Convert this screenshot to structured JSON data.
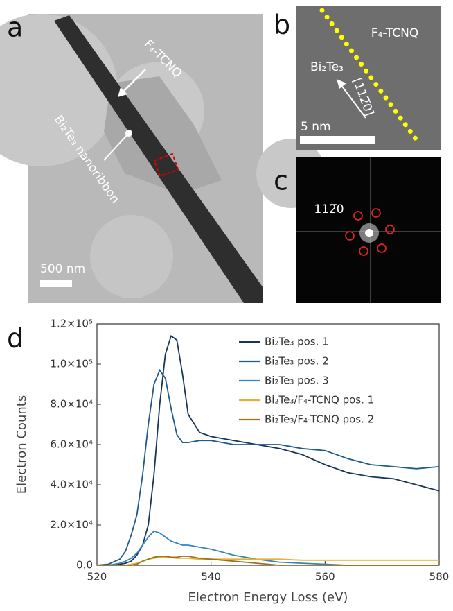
{
  "panels": {
    "a": {
      "label": "a",
      "annotations": [
        "F₄-TCNQ",
        "Bi₂Te₃ nanoribbon"
      ],
      "scale_bar": "500 nm"
    },
    "b": {
      "label": "b",
      "annotations": [
        "F₄-TCNQ",
        "Bi₂Te₃",
        "[112̅0]"
      ],
      "scale_bar": "5 nm"
    },
    "c": {
      "label": "c",
      "annotations": [
        "112̅0"
      ]
    },
    "d": {
      "label": "d"
    }
  },
  "chart_data": {
    "type": "line",
    "xlabel": "Electron Energy Loss (eV)",
    "ylabel": "Electron Counts",
    "x": [
      520,
      522,
      524,
      525,
      526,
      527,
      528,
      529,
      530,
      531,
      532,
      533,
      534,
      535,
      536,
      538,
      540,
      544,
      548,
      552,
      556,
      560,
      564,
      568,
      572,
      576,
      580
    ],
    "xlim": [
      520,
      580
    ],
    "xticks": [
      520,
      540,
      560,
      580
    ],
    "ylim": [
      0,
      120000
    ],
    "yticks": [
      {
        "value": 0,
        "label": "0.0"
      },
      {
        "value": 20000,
        "label": "2.0×10⁴"
      },
      {
        "value": 40000,
        "label": "4.0×10⁴"
      },
      {
        "value": 60000,
        "label": "6.0×10⁴"
      },
      {
        "value": 80000,
        "label": "8.0×10⁴"
      },
      {
        "value": 100000,
        "label": "1.0×10⁵"
      },
      {
        "value": 120000,
        "label": "1.2×10⁵"
      }
    ],
    "legend": "upper right",
    "series": [
      {
        "name": "Bi₂Te₃ pos. 1",
        "color": "#17365a",
        "values": [
          0,
          0,
          500,
          1000,
          2000,
          5000,
          10000,
          20000,
          45000,
          80000,
          105000,
          114000,
          112000,
          95000,
          75000,
          66000,
          64000,
          62000,
          60000,
          58000,
          55000,
          50000,
          46000,
          44000,
          43000,
          40000,
          37000
        ]
      },
      {
        "name": "Bi₂Te₃ pos. 2",
        "color": "#1f5a8a",
        "values": [
          0,
          500,
          3000,
          7000,
          15000,
          25000,
          45000,
          70000,
          90000,
          97000,
          93000,
          78000,
          65000,
          61000,
          61000,
          62000,
          62000,
          60000,
          60000,
          60000,
          58000,
          57000,
          53000,
          50000,
          49000,
          48000,
          49000
        ]
      },
      {
        "name": "Bi₂Te₃ pos. 3",
        "color": "#2f86c0",
        "values": [
          0,
          0,
          1000,
          2000,
          3500,
          6000,
          10000,
          14000,
          17000,
          16000,
          14000,
          12000,
          11000,
          10000,
          10000,
          9000,
          8000,
          5000,
          3000,
          1500,
          1000,
          500,
          0,
          0,
          0,
          0,
          0
        ]
      },
      {
        "name": "Bi₂Te₃/F₄-TCNQ pos. 1",
        "color": "#e8b030",
        "values": [
          0,
          0,
          0,
          0,
          500,
          1000,
          2000,
          3000,
          3500,
          4000,
          4000,
          3800,
          3500,
          3500,
          3500,
          3000,
          3000,
          3000,
          3000,
          3000,
          2500,
          2500,
          2500,
          2500,
          2500,
          2500,
          2500
        ]
      },
      {
        "name": "Bi₂Te₃/F₄-TCNQ pos. 2",
        "color": "#a0701a",
        "values": [
          0,
          0,
          0,
          0,
          0,
          500,
          2000,
          3000,
          4000,
          4500,
          4500,
          4000,
          4000,
          4500,
          4500,
          3500,
          3000,
          2000,
          1000,
          0,
          0,
          0,
          0,
          0,
          0,
          0,
          0
        ]
      }
    ]
  }
}
